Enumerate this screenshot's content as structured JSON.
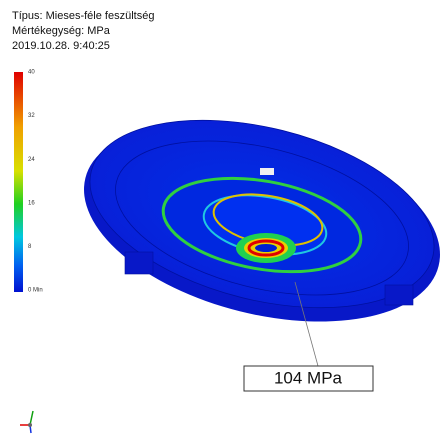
{
  "header": {
    "type_line": "Típus: Mieses-féle feszültség",
    "unit_line": "Mértékegység: MPa",
    "timestamp": "2019.10.28. 9:40:25"
  },
  "legend": {
    "labels": [
      "40",
      "32",
      "24",
      "16",
      "8",
      "0 Min"
    ]
  },
  "callout": {
    "label": "104 MPa"
  }
}
